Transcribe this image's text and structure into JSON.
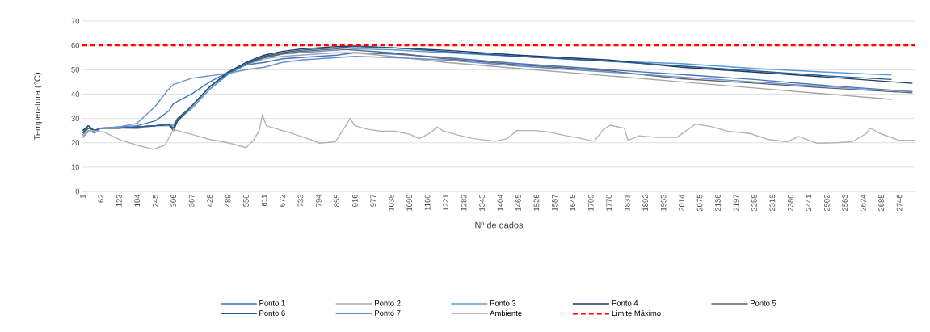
{
  "chart_data": {
    "type": "line",
    "xlabel": "Nº de dados",
    "ylabel": "Temperatura (°C)",
    "xlim": [
      0,
      2800
    ],
    "ylim": [
      0,
      70
    ],
    "xticks": [
      1,
      62,
      123,
      184,
      245,
      306,
      367,
      428,
      489,
      550,
      611,
      672,
      733,
      794,
      855,
      916,
      977,
      1038,
      1099,
      1160,
      1221,
      1282,
      1343,
      1404,
      1465,
      1526,
      1587,
      1648,
      1709,
      1770,
      1831,
      1892,
      1953,
      2014,
      2075,
      2136,
      2197,
      2258,
      2319,
      2380,
      2441,
      2502,
      2563,
      2624,
      2685,
      2746
    ],
    "yticks": [
      0,
      10,
      20,
      30,
      40,
      50,
      60,
      70
    ],
    "grid": "y",
    "legend": "bottom",
    "line_style": "solid",
    "series": [
      {
        "name": "Ponto 1",
        "color": "#4472c4",
        "x": [
          1,
          20,
          40,
          62,
          123,
          184,
          245,
          290,
          306,
          320,
          367,
          428,
          489,
          550,
          611,
          672,
          733,
          794,
          855,
          916,
          1038,
          1221,
          1465,
          1770,
          2014,
          2258,
          2502,
          2790
        ],
        "values": [
          23,
          26,
          25,
          26,
          26.5,
          27,
          29,
          33,
          36,
          37,
          40,
          45,
          49,
          52,
          53,
          54.5,
          55,
          55.5,
          56,
          57,
          56.5,
          55,
          52.5,
          50,
          48,
          46,
          43.5,
          41
        ]
      },
      {
        "name": "Ponto 2",
        "color": "#a5a5a5",
        "x": [
          1,
          20,
          40,
          62,
          123,
          184,
          245,
          290,
          306,
          320,
          367,
          428,
          489,
          550,
          611,
          672,
          733,
          794,
          855,
          916,
          1038,
          1221,
          1465,
          1770,
          2014,
          2258,
          2502,
          2720
        ],
        "values": [
          24,
          26,
          25,
          26,
          26,
          25.8,
          27,
          27,
          27,
          29,
          34,
          42,
          48,
          52,
          54.5,
          55.5,
          56,
          56.5,
          57,
          57,
          55.5,
          53,
          50.5,
          47.5,
          45,
          42.5,
          40,
          37.8
        ]
      },
      {
        "name": "Ponto 3",
        "color": "#5b9bd5",
        "x": [
          1,
          20,
          40,
          62,
          123,
          184,
          245,
          290,
          306,
          320,
          367,
          428,
          489,
          550,
          611,
          672,
          733,
          794,
          855,
          916,
          1038,
          1221,
          1465,
          1770,
          2014,
          2258,
          2502,
          2720
        ],
        "values": [
          24,
          26,
          25,
          26,
          26.5,
          26.5,
          27,
          27,
          27.5,
          30,
          34,
          42,
          48,
          52,
          55,
          56.5,
          57,
          57.5,
          58,
          58.5,
          58.2,
          57,
          55.5,
          53.5,
          52.5,
          50.5,
          49,
          47.8
        ]
      },
      {
        "name": "Ponto 4",
        "color": "#1f3864",
        "x": [
          1,
          20,
          40,
          62,
          123,
          184,
          245,
          290,
          306,
          320,
          367,
          428,
          489,
          550,
          611,
          672,
          733,
          794,
          855,
          916,
          1038,
          1221,
          1465,
          1770,
          2014,
          2258,
          2502,
          2790
        ],
        "values": [
          25,
          27,
          24,
          26,
          26,
          26.5,
          27,
          27.5,
          25,
          29,
          35,
          43,
          49,
          53,
          56,
          57.5,
          58.5,
          59,
          59.5,
          59.7,
          59,
          58,
          56,
          54,
          51,
          49,
          47,
          44.4
        ]
      },
      {
        "name": "Ponto 5",
        "color": "#636363",
        "x": [
          1,
          20,
          40,
          62,
          123,
          184,
          245,
          290,
          306,
          320,
          367,
          428,
          489,
          550,
          611,
          672,
          733,
          794,
          855,
          916,
          1038,
          1221,
          1465,
          1770,
          2014,
          2258,
          2502,
          2790
        ],
        "values": [
          24,
          26,
          25,
          26,
          26,
          26.5,
          27,
          27.5,
          26,
          29.5,
          35,
          43,
          48.5,
          52.5,
          55,
          56.5,
          57.5,
          58,
          58.5,
          58,
          57,
          54.5,
          52,
          49.5,
          46.3,
          44.5,
          42.5,
          40.5
        ]
      },
      {
        "name": "Ponto 6",
        "color": "#255e91",
        "x": [
          1,
          20,
          40,
          62,
          123,
          184,
          245,
          290,
          306,
          320,
          367,
          428,
          489,
          550,
          611,
          672,
          733,
          794,
          855,
          916,
          1038,
          1221,
          1465,
          1770,
          2014,
          2258,
          2502,
          2720
        ],
        "values": [
          24,
          27,
          25,
          26,
          26,
          26.5,
          27,
          27.5,
          26,
          30,
          35,
          43,
          48.5,
          52.5,
          55.5,
          57,
          58,
          58.5,
          59,
          59.5,
          59,
          57.5,
          55.5,
          53.5,
          51.5,
          49.5,
          47.5,
          46
        ]
      },
      {
        "name": "Ponto 7",
        "color": "#698ed0",
        "x": [
          1,
          20,
          40,
          62,
          123,
          184,
          245,
          290,
          306,
          320,
          367,
          428,
          489,
          550,
          611,
          672,
          733,
          794,
          855,
          916,
          1038,
          1221,
          1465,
          1770,
          2014,
          2258,
          2502,
          2790
        ],
        "values": [
          22,
          25,
          24,
          26,
          26.5,
          28,
          35,
          42,
          44,
          44.5,
          46.5,
          47.5,
          48.5,
          50,
          51,
          53,
          54,
          54.5,
          55,
          55.5,
          55,
          54,
          51.5,
          49,
          47,
          45,
          43,
          41
        ]
      },
      {
        "name": "Ambiente",
        "color": "#b4b4b4",
        "x": [
          1,
          30,
          75,
          130,
          184,
          238,
          277,
          307,
          320,
          380,
          430,
          490,
          550,
          575,
          594,
          605,
          618,
          700,
          768,
          796,
          850,
          886,
          900,
          915,
          960,
          1004,
          1050,
          1100,
          1132,
          1170,
          1192,
          1210,
          1260,
          1315,
          1386,
          1428,
          1460,
          1520,
          1569,
          1620,
          1660,
          1720,
          1752,
          1774,
          1821,
          1834,
          1870,
          1933,
          1998,
          2061,
          2116,
          2170,
          2244,
          2306,
          2369,
          2407,
          2470,
          2530,
          2588,
          2635,
          2648,
          2681,
          2744,
          2795
        ],
        "values": [
          23,
          25,
          24.3,
          21,
          19,
          17.3,
          19,
          25.6,
          25,
          23,
          21.3,
          20,
          18,
          21,
          25,
          31.5,
          27,
          24,
          21.3,
          19.8,
          20.4,
          27.2,
          30,
          27,
          25.5,
          24.7,
          24.7,
          23.5,
          21.7,
          24,
          26.5,
          25,
          23.2,
          21.7,
          20.6,
          21.7,
          25,
          25,
          24.4,
          23,
          22.2,
          20.6,
          25.5,
          27.2,
          26,
          21,
          22.8,
          22.2,
          22.2,
          27.7,
          26.6,
          24.7,
          23.8,
          21.3,
          20.4,
          22.6,
          19.8,
          20,
          20.4,
          23.8,
          26,
          23.8,
          21,
          21
        ]
      }
    ],
    "ref_lines": [
      {
        "axis": "y",
        "value": 60,
        "label": "Limite Máximo",
        "color": "#ff0000",
        "line_style": "dashed"
      }
    ]
  }
}
